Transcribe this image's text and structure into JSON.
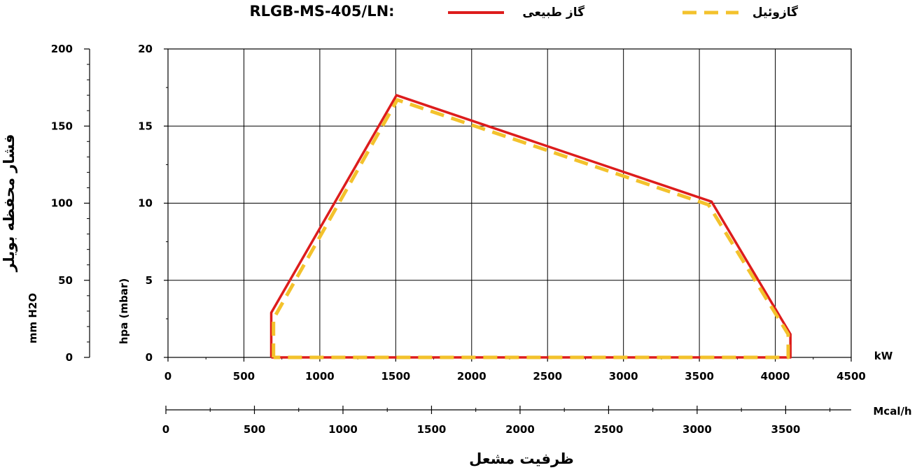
{
  "chart_data": {
    "type": "line",
    "title": "RLGB-MS-405/LN:",
    "legend": {
      "placement": "top",
      "entries": [
        {
          "name": "گاز طبیعی",
          "color": "#dd1c1c",
          "style": "solid"
        },
        {
          "name": "گازوئیل",
          "color": "#f3c22c",
          "style": "dashed"
        }
      ]
    },
    "xlabel": "ظرفیت مشعل",
    "xunit_primary": "kW",
    "xunit_secondary": "Mcal/h",
    "ylabel_left": "فشار محفظه بویلر",
    "ylabel_left_unit": "mm H2O",
    "ylabel_inner": "hpa (mbar)",
    "xlim": [
      0,
      4500
    ],
    "ylim_inner": [
      0,
      20
    ],
    "ylim_left": [
      0,
      200
    ],
    "secondary_xlim": [
      0,
      3870
    ],
    "xticks": [
      "0",
      "500",
      "1000",
      "1500",
      "2000",
      "2500",
      "3000",
      "3500",
      "4000",
      "4500"
    ],
    "yticks_inner": [
      "0",
      "5",
      "10",
      "15",
      "20"
    ],
    "yticks_left": [
      "0",
      "50",
      "100",
      "150",
      "200"
    ],
    "secondary_xticks": [
      "0",
      "500",
      "1000",
      "1500",
      "2000",
      "2500",
      "3000",
      "3500"
    ],
    "grid": true,
    "series": [
      {
        "name": "گاز طبیعی",
        "color": "#dd1c1c",
        "points": [
          [
            680,
            0
          ],
          [
            680,
            2.9
          ],
          [
            1505,
            17.0
          ],
          [
            3580,
            10.1
          ],
          [
            4100,
            1.5
          ],
          [
            4100,
            0
          ],
          [
            680,
            0
          ]
        ]
      },
      {
        "name": "گازوئیل",
        "color": "#f3c22c",
        "points": [
          [
            695,
            0
          ],
          [
            695,
            2.5
          ],
          [
            1510,
            16.7
          ],
          [
            3560,
            9.9
          ],
          [
            4085,
            1.5
          ],
          [
            4085,
            0
          ],
          [
            695,
            0
          ]
        ]
      }
    ]
  }
}
